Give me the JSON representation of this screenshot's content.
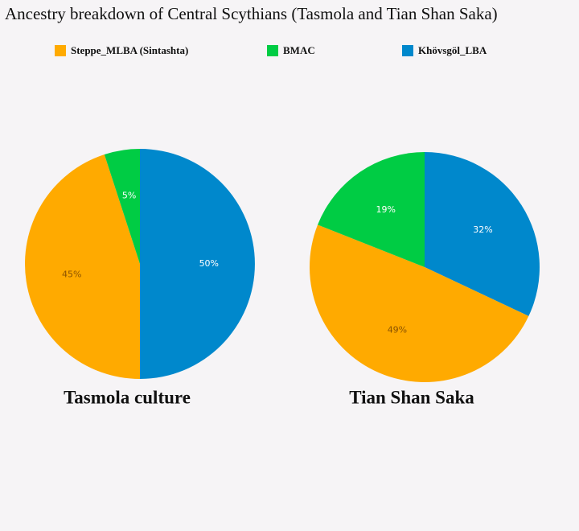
{
  "title": "Ancestry breakdown of Central Scythians (Tasmola and Tian Shan Saka)",
  "chart_data": [
    {
      "type": "pie",
      "title": "Tasmola culture",
      "categories": [
        "Steppe_MLBA (Sintashta)",
        "BMAC",
        "Khövsgöl_LBA"
      ],
      "colors": [
        "#ffaa00",
        "#00cc44",
        "#0088cc"
      ],
      "values": [
        45,
        5,
        50
      ],
      "value_labels": [
        "45%",
        "5%",
        "50%"
      ]
    },
    {
      "type": "pie",
      "title": "Tian Shan Saka",
      "categories": [
        "Steppe_MLBA (Sintashta)",
        "BMAC",
        "Khövsgöl_LBA"
      ],
      "colors": [
        "#ffaa00",
        "#00cc44",
        "#0088cc"
      ],
      "values": [
        49,
        19,
        32
      ],
      "value_labels": [
        "49%",
        "19%",
        "32%"
      ]
    }
  ]
}
